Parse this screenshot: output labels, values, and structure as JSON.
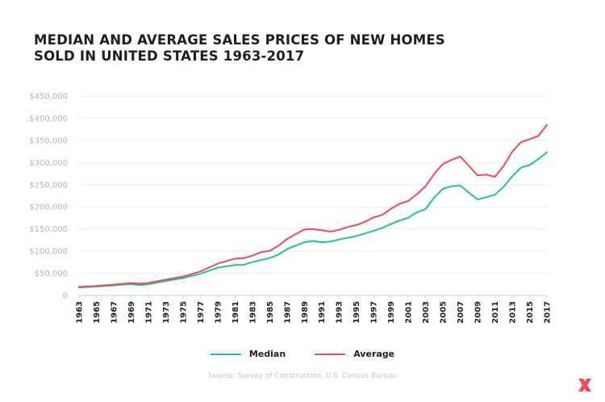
{
  "chart_data": {
    "type": "line",
    "title": "MEDIAN AND AVERAGE SALES PRICES OF NEW HOMES SOLD IN UNITED STATES 1963-2017",
    "xlabel": "",
    "ylabel": "",
    "ylim": [
      0,
      450000
    ],
    "yticks": [
      0,
      50000,
      100000,
      150000,
      200000,
      250000,
      300000,
      350000,
      400000,
      450000
    ],
    "ytick_labels": [
      "0",
      "$50,000",
      "$100,000",
      "$150,000",
      "$200,000",
      "$250,000",
      "$300,000",
      "$350,000",
      "$400,000",
      "$450,000"
    ],
    "xlim": [
      1963,
      2017
    ],
    "xtick_labels": [
      "1963",
      "1965",
      "1967",
      "1969",
      "1971",
      "1973",
      "1975",
      "1977",
      "1979",
      "1981",
      "1983",
      "1985",
      "1987",
      "1989",
      "1991",
      "1993",
      "1995",
      "1997",
      "1999",
      "2001",
      "2003",
      "2005",
      "2007",
      "2009",
      "2011",
      "2013",
      "2015",
      "2017"
    ],
    "series": [
      {
        "name": "Median",
        "color": "#1ec882",
        "points": [
          [
            1963,
            18000
          ],
          [
            1965,
            20000
          ],
          [
            1967,
            22700
          ],
          [
            1969,
            25600
          ],
          [
            1970,
            23400
          ],
          [
            1971,
            25200
          ],
          [
            1973,
            32500
          ],
          [
            1975,
            39300
          ],
          [
            1977,
            48800
          ],
          [
            1979,
            62900
          ],
          [
            1981,
            68900
          ],
          [
            1982,
            69300
          ],
          [
            1983,
            75300
          ],
          [
            1984,
            79900
          ],
          [
            1985,
            84300
          ],
          [
            1986,
            92000
          ],
          [
            1987,
            104500
          ],
          [
            1988,
            112500
          ],
          [
            1989,
            120000
          ],
          [
            1990,
            122900
          ],
          [
            1991,
            120000
          ],
          [
            1992,
            121500
          ],
          [
            1993,
            126500
          ],
          [
            1994,
            130000
          ],
          [
            1995,
            133900
          ],
          [
            1996,
            140000
          ],
          [
            1997,
            146000
          ],
          [
            1998,
            152500
          ],
          [
            1999,
            161000
          ],
          [
            2000,
            169000
          ],
          [
            2001,
            175200
          ],
          [
            2002,
            187600
          ],
          [
            2003,
            195000
          ],
          [
            2004,
            221000
          ],
          [
            2005,
            240900
          ],
          [
            2006,
            246500
          ],
          [
            2007,
            247900
          ],
          [
            2008,
            232100
          ],
          [
            2009,
            216700
          ],
          [
            2010,
            221800
          ],
          [
            2011,
            227200
          ],
          [
            2012,
            245200
          ],
          [
            2013,
            268900
          ],
          [
            2014,
            288500
          ],
          [
            2015,
            294200
          ],
          [
            2016,
            307800
          ],
          [
            2017,
            323100
          ]
        ]
      },
      {
        "name": "Average",
        "color": "#f04b5a",
        "points": [
          [
            1963,
            19300
          ],
          [
            1965,
            21500
          ],
          [
            1967,
            24600
          ],
          [
            1969,
            27900
          ],
          [
            1970,
            26600
          ],
          [
            1971,
            28300
          ],
          [
            1973,
            35500
          ],
          [
            1975,
            42600
          ],
          [
            1977,
            54200
          ],
          [
            1979,
            71800
          ],
          [
            1981,
            83000
          ],
          [
            1982,
            83900
          ],
          [
            1983,
            89800
          ],
          [
            1984,
            97600
          ],
          [
            1985,
            100800
          ],
          [
            1986,
            111900
          ],
          [
            1987,
            127200
          ],
          [
            1988,
            138300
          ],
          [
            1989,
            148800
          ],
          [
            1990,
            149800
          ],
          [
            1991,
            147200
          ],
          [
            1992,
            144100
          ],
          [
            1993,
            147700
          ],
          [
            1994,
            154500
          ],
          [
            1995,
            158700
          ],
          [
            1996,
            166400
          ],
          [
            1997,
            176200
          ],
          [
            1998,
            181900
          ],
          [
            1999,
            195600
          ],
          [
            2000,
            207000
          ],
          [
            2001,
            213200
          ],
          [
            2002,
            228700
          ],
          [
            2003,
            246300
          ],
          [
            2004,
            274500
          ],
          [
            2005,
            297000
          ],
          [
            2006,
            305900
          ],
          [
            2007,
            313600
          ],
          [
            2008,
            292600
          ],
          [
            2009,
            270900
          ],
          [
            2010,
            272900
          ],
          [
            2011,
            267900
          ],
          [
            2012,
            292200
          ],
          [
            2013,
            324500
          ],
          [
            2014,
            345800
          ],
          [
            2015,
            352700
          ],
          [
            2016,
            359900
          ],
          [
            2017,
            384900
          ]
        ]
      }
    ],
    "source": "Source: Survey of Construction, U.S. Census Bureau"
  },
  "brand": {
    "accent": "#f04b5a",
    "dark": "#1e1e1e",
    "logo_name": "x-logo-icon"
  }
}
